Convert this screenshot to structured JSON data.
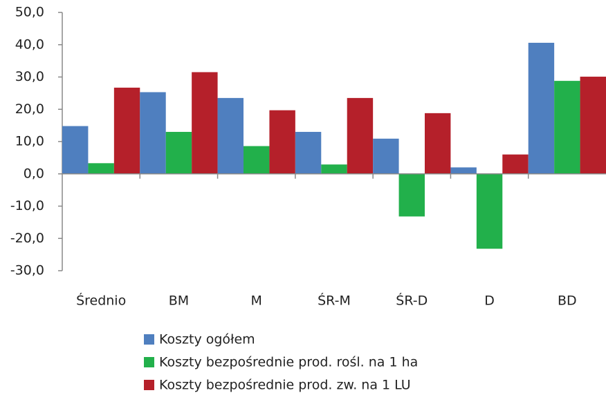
{
  "chart_data": {
    "type": "bar",
    "categories": [
      "Średnio",
      "BM",
      "M",
      "ŚR-M",
      "ŚR-D",
      "D",
      "BD"
    ],
    "series": [
      {
        "name": "Koszty ogółem",
        "color": "#4f7fbf",
        "values": [
          14.8,
          25.3,
          23.5,
          13.0,
          10.9,
          2.0,
          40.6
        ]
      },
      {
        "name": "Koszty bezpośrednie prod. rośl. na 1 ha",
        "color": "#22b04b",
        "values": [
          3.3,
          13.0,
          8.6,
          2.9,
          -13.2,
          -23.2,
          28.8
        ]
      },
      {
        "name": "Koszty bezpośrednie prod. zw. na 1 LU",
        "color": "#b5202a",
        "values": [
          26.7,
          31.5,
          19.7,
          23.5,
          18.8,
          6.0,
          30.1
        ]
      }
    ],
    "ylim": [
      -30,
      50
    ],
    "yticks": [
      {
        "value": -30,
        "label": "-30,0"
      },
      {
        "value": -20,
        "label": "-20,0"
      },
      {
        "value": -10,
        "label": "-10,0"
      },
      {
        "value": 0,
        "label": "0,0"
      },
      {
        "value": 10,
        "label": "10,0"
      },
      {
        "value": 20,
        "label": "20,0"
      },
      {
        "value": 30,
        "label": "30,0"
      },
      {
        "value": 40,
        "label": "40,0"
      },
      {
        "value": 50,
        "label": "50,0"
      }
    ],
    "grid": false,
    "legend": "bottom"
  }
}
